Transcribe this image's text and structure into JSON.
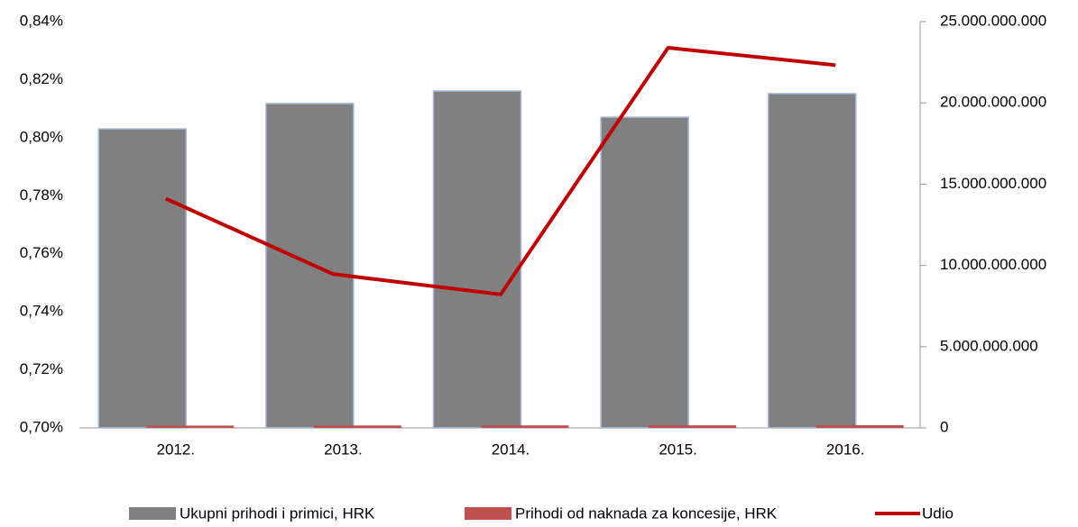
{
  "chart_data": {
    "type": "bar",
    "categories": [
      "2012.",
      "2013.",
      "2014.",
      "2015.",
      "2016."
    ],
    "series": [
      {
        "name": "Ukupni prihodi i primici, HRK",
        "color": "#808080",
        "type": "bar",
        "axis": "y2",
        "values": [
          18400000000,
          19960000000,
          20730000000,
          19120000000,
          20570000000
        ]
      },
      {
        "name": "Prihodi od naknada za koncesije, HRK",
        "color": "#c0504d",
        "type": "bar",
        "axis": "y2",
        "values": [
          143000000,
          150000000,
          155000000,
          159000000,
          170000000
        ]
      },
      {
        "name": "Udio",
        "color": "#c00000",
        "type": "line",
        "axis": "y",
        "values": [
          0.779,
          0.753,
          0.746,
          0.831,
          0.825
        ]
      }
    ],
    "ylim": [
      0.7,
      0.84
    ],
    "yticks": [
      {
        "value": 0.7,
        "label": "0,70%"
      },
      {
        "value": 0.72,
        "label": "0,72%"
      },
      {
        "value": 0.74,
        "label": "0,74%"
      },
      {
        "value": 0.76,
        "label": "0,76%"
      },
      {
        "value": 0.78,
        "label": "0,78%"
      },
      {
        "value": 0.8,
        "label": "0,80%"
      },
      {
        "value": 0.82,
        "label": "0,82%"
      },
      {
        "value": 0.84,
        "label": "0,84%"
      }
    ],
    "y2lim": [
      0,
      25000000000
    ],
    "y2ticks": [
      0,
      {
        "value": 5000000000,
        "label": "5.000.000.000"
      },
      {
        "value": 10000000000,
        "label": "10.000.000.000"
      },
      {
        "value": 15000000000,
        "label": "15.000.000.000"
      },
      {
        "value": 20000000000,
        "label": "20.000.000.000"
      },
      {
        "value": 25000000000,
        "label": "25.000.000.000"
      }
    ],
    "grid": false
  }
}
